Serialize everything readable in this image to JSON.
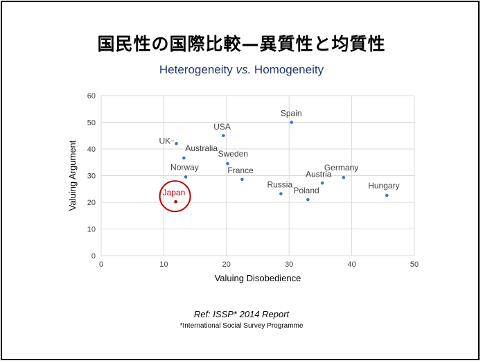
{
  "slide": {
    "title": "国民性の国際比較—異質性と均質性",
    "subtitle_part1": "Heterogeneity ",
    "subtitle_vs": "vs.",
    "subtitle_part2": " Homogeneity",
    "reference": "Ref: ISSP* 2014 Report",
    "reference_note": "*International  Social Survey Programme"
  },
  "chart_data": {
    "type": "scatter",
    "xlabel": "Valuing Disobedience",
    "ylabel": "Valuing Argument",
    "xlim": [
      0,
      50
    ],
    "ylim": [
      0,
      60
    ],
    "xticks": [
      0,
      10,
      20,
      30,
      40,
      50
    ],
    "yticks": [
      0,
      10,
      20,
      30,
      40,
      50,
      60
    ],
    "grid": true,
    "point_color": "#4472c4",
    "highlight_color": "#c00000",
    "points": [
      {
        "label": "UK",
        "x": 12,
        "y": 42
      },
      {
        "label": "Australia",
        "x": 13.2,
        "y": 36.6
      },
      {
        "label": "Norway",
        "x": 13.5,
        "y": 29.5
      },
      {
        "label": "Japan",
        "x": 11.9,
        "y": 20.2,
        "highlight": true
      },
      {
        "label": "USA",
        "x": 19.5,
        "y": 45
      },
      {
        "label": "Sweden",
        "x": 20.2,
        "y": 34.5
      },
      {
        "label": "France",
        "x": 22.5,
        "y": 28.6
      },
      {
        "label": "Spain",
        "x": 30.4,
        "y": 50
      },
      {
        "label": "Russia",
        "x": 28.7,
        "y": 23.2
      },
      {
        "label": "Poland",
        "x": 33,
        "y": 21
      },
      {
        "label": "Austria",
        "x": 35.3,
        "y": 27.2
      },
      {
        "label": "Germany",
        "x": 38.7,
        "y": 29.3
      },
      {
        "label": "Hungary",
        "x": 45.6,
        "y": 22.6
      }
    ]
  }
}
